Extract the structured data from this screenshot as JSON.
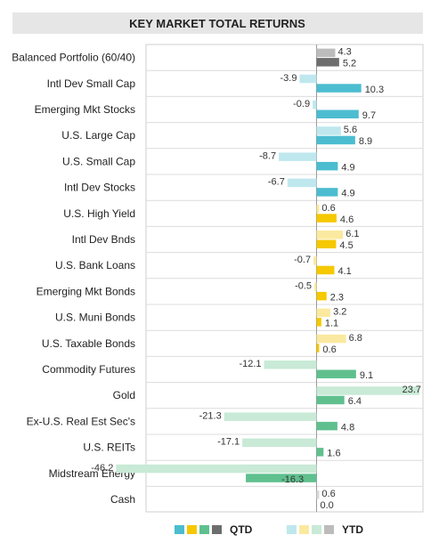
{
  "chart_data": {
    "type": "bar",
    "orientation": "horizontal",
    "title": "KEY MARKET TOTAL RETURNS",
    "categories": [
      "Balanced Portfolio (60/40)",
      "Intl Dev Small Cap",
      "Emerging Mkt Stocks",
      "U.S. Large Cap",
      "U.S. Small Cap",
      "Intl Dev Stocks",
      "U.S. High Yield",
      "Intl Dev Bnds",
      "U.S. Bank Loans",
      "Emerging Mkt Bonds",
      "U.S. Muni Bonds",
      "U.S. Taxable Bonds",
      "Commodity Futures",
      "Gold",
      "Ex-U.S. Real Est Sec's",
      "U.S. REITs",
      "Midstream Energy",
      "Cash"
    ],
    "groups": [
      "equity",
      "equity",
      "equity",
      "equity",
      "equity",
      "equity",
      "fixed",
      "fixed",
      "fixed",
      "fixed",
      "fixed",
      "fixed",
      "real",
      "real",
      "real",
      "real",
      "real",
      "cash"
    ],
    "series": [
      {
        "name": "YTD",
        "values": [
          4.3,
          -3.9,
          -0.9,
          5.6,
          -8.7,
          -6.7,
          0.6,
          6.1,
          -0.7,
          -0.5,
          3.2,
          6.8,
          -12.1,
          23.7,
          -21.3,
          -17.1,
          -46.2,
          0.6
        ]
      },
      {
        "name": "QTD",
        "values": [
          5.2,
          10.3,
          9.7,
          8.9,
          4.9,
          4.9,
          4.6,
          4.5,
          4.1,
          2.3,
          1.1,
          0.6,
          9.1,
          6.4,
          4.8,
          1.6,
          -16.3,
          0.0
        ]
      }
    ],
    "value_labels": {
      "YTD": [
        "4.3",
        "-3.9",
        "-0.9",
        "5.6",
        "-8.7",
        "-6.7",
        "0.6",
        "6.1",
        "-0.7",
        "-0.5",
        "3.2",
        "6.8",
        "-12.1",
        "23.7",
        "-21.3",
        "-17.1",
        "-46.2",
        "0.6"
      ],
      "QTD": [
        "5.2",
        "10.3",
        "9.7",
        "8.9",
        "4.9",
        "4.9",
        "4.6",
        "4.5",
        "4.1",
        "2.3",
        "1.1",
        "0.6",
        "9.1",
        "6.4",
        "4.8",
        "1.6",
        "-16.3",
        "0.0"
      ]
    },
    "xlim": [
      -46.2,
      23.7
    ],
    "legend": {
      "position": "bottom",
      "entries": [
        {
          "label": "QTD",
          "colors": [
            "#4cbdd0",
            "#f5c800",
            "#5fc08e",
            "#6d6d6d"
          ]
        },
        {
          "label": "YTD",
          "colors": [
            "#bfe8ee",
            "#fbe9a0",
            "#c8ead6",
            "#bcbcbc"
          ]
        }
      ]
    },
    "colors": {
      "equity": {
        "QTD": "#4cbdd0",
        "YTD": "#bfe8ee"
      },
      "fixed": {
        "QTD": "#f5c800",
        "YTD": "#fbe9a0"
      },
      "real": {
        "QTD": "#5fc08e",
        "YTD": "#c8ead6"
      },
      "cash": {
        "QTD": "#bcbcbc",
        "YTD": "#d9d9d9"
      },
      "balanced": {
        "QTD": "#6d6d6d",
        "YTD": "#bcbcbc"
      }
    },
    "grid": true
  }
}
